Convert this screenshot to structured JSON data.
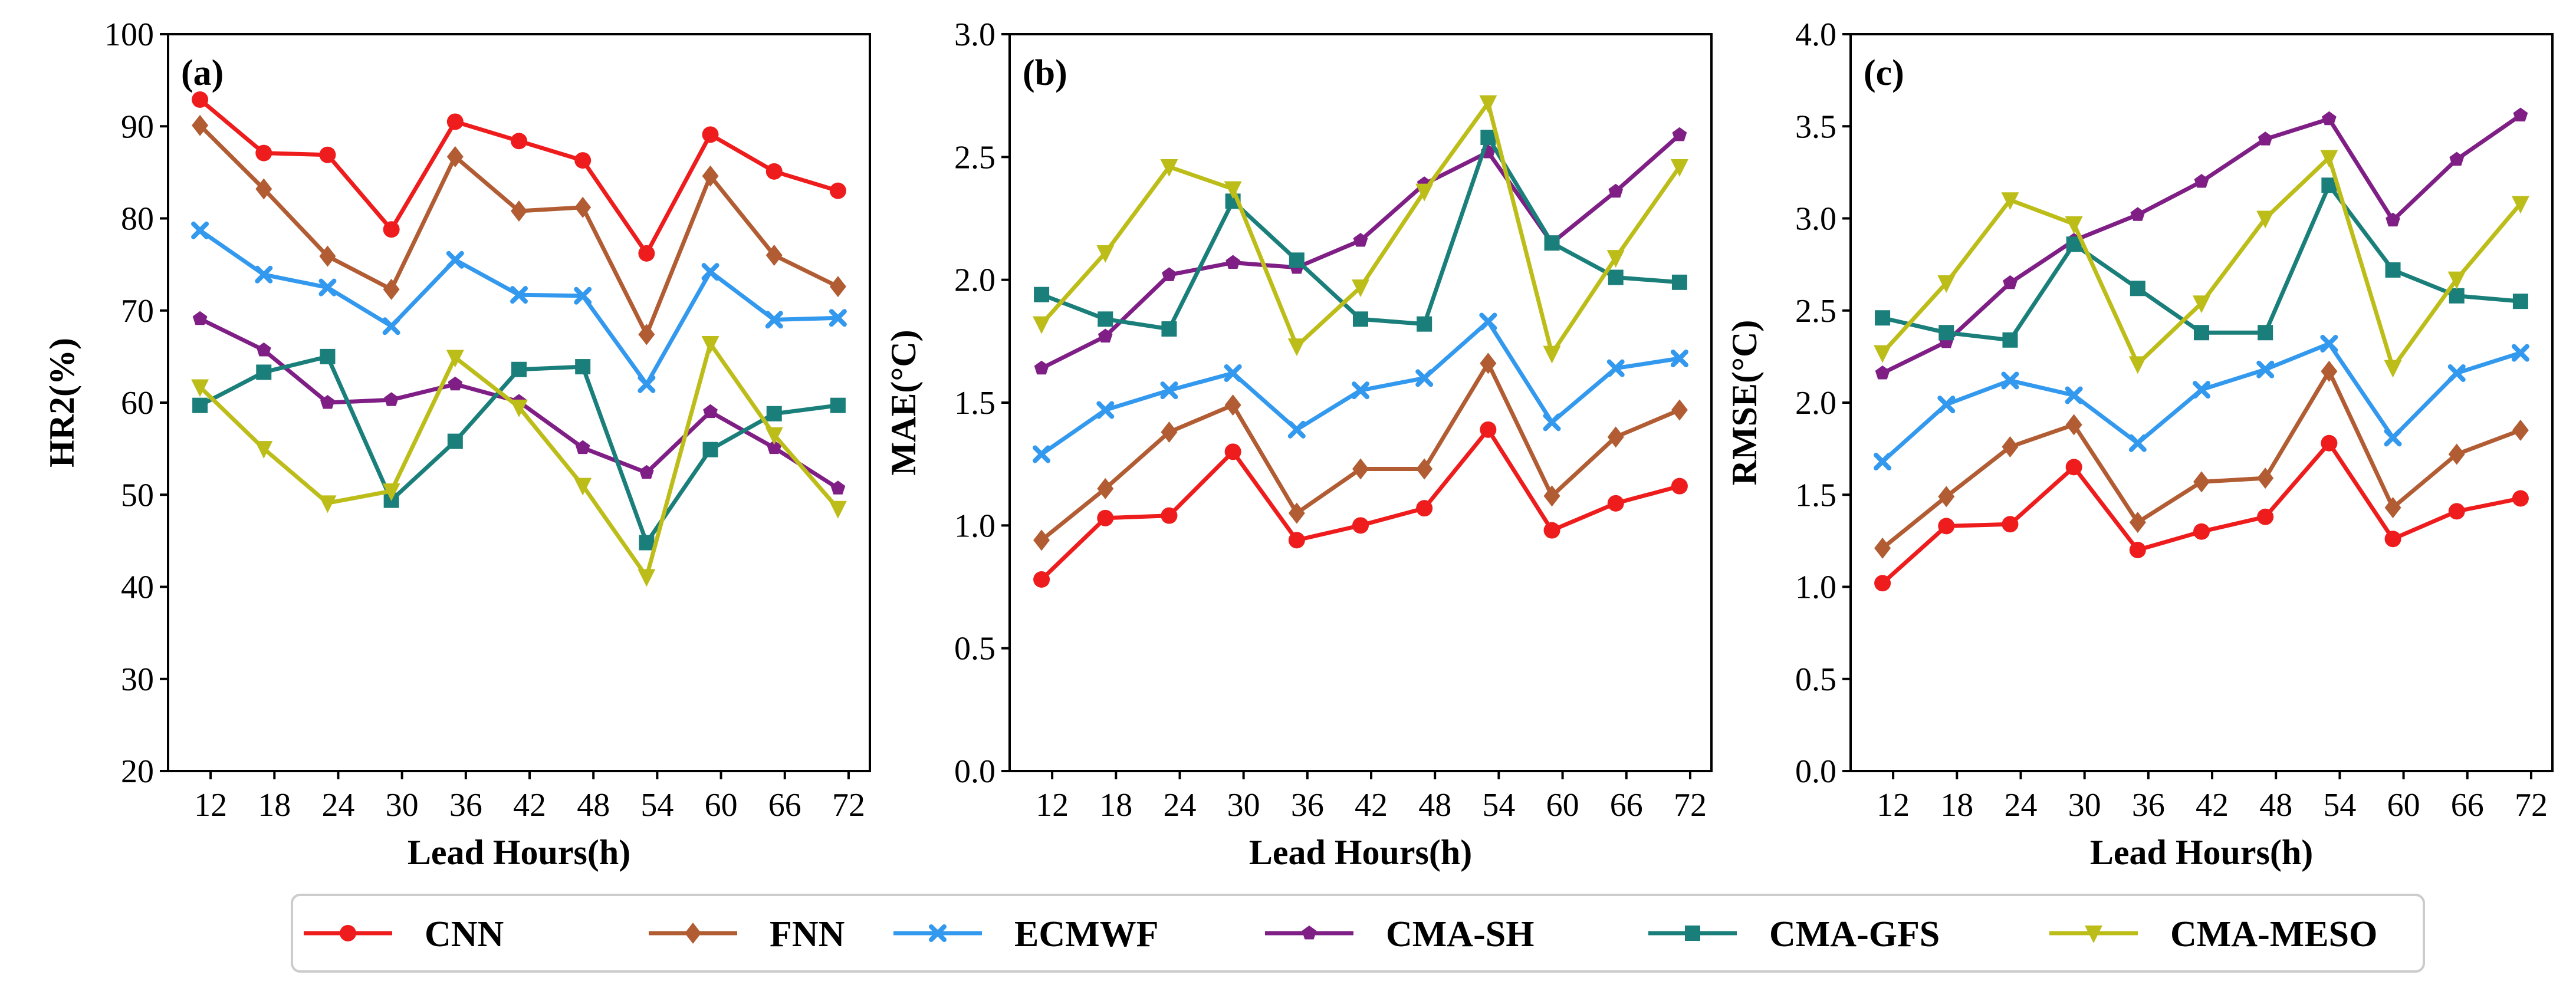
{
  "legend": [
    {
      "name": "CNN",
      "color": "#ee1c1c",
      "marker": "circle"
    },
    {
      "name": "FNN",
      "color": "#b15c33",
      "marker": "diamond"
    },
    {
      "name": "ECMWF",
      "color": "#3399ee",
      "marker": "x"
    },
    {
      "name": "CMA-SH",
      "color": "#7f1f86",
      "marker": "pentagon"
    },
    {
      "name": "CMA-GFS",
      "color": "#1a7f7a",
      "marker": "square"
    },
    {
      "name": "CMA-MESO",
      "color": "#bdbd1a",
      "marker": "triangle-down"
    }
  ],
  "chart_data": [
    {
      "type": "line",
      "panel": "(a)",
      "xlabel": "Lead Hours(h)",
      "ylabel": "HR2(%)",
      "ylim": [
        20,
        100
      ],
      "yticks": [
        "20",
        "30",
        "40",
        "50",
        "60",
        "70",
        "80",
        "90",
        "100"
      ],
      "xticks": [
        "12",
        "18",
        "24",
        "30",
        "36",
        "42",
        "48",
        "54",
        "60",
        "66",
        "72"
      ],
      "x": [
        11,
        17,
        23,
        29,
        35,
        41,
        47,
        53,
        59,
        65,
        71
      ],
      "series": [
        {
          "name": "CNN",
          "values": [
            92.9,
            87.1,
            86.9,
            78.8,
            90.5,
            88.4,
            86.3,
            76.2,
            89.1,
            85.1,
            83.0
          ]
        },
        {
          "name": "FNN",
          "values": [
            90.1,
            83.2,
            75.9,
            72.3,
            86.7,
            80.8,
            81.2,
            67.4,
            84.6,
            76.0,
            72.6
          ]
        },
        {
          "name": "ECMWF",
          "values": [
            78.7,
            73.9,
            72.5,
            68.3,
            75.5,
            71.7,
            71.6,
            62.0,
            74.2,
            69.0,
            69.2
          ]
        },
        {
          "name": "CMA-SH",
          "values": [
            69.1,
            65.7,
            60.0,
            60.3,
            62.0,
            60.1,
            55.1,
            52.4,
            59.0,
            55.1,
            50.7
          ]
        },
        {
          "name": "CMA-GFS",
          "values": [
            59.7,
            63.3,
            65.0,
            49.4,
            55.8,
            63.6,
            63.9,
            44.8,
            54.9,
            58.8,
            59.7
          ]
        },
        {
          "name": "CMA-MESO",
          "values": [
            61.7,
            55.0,
            49.1,
            50.4,
            64.9,
            59.5,
            51.0,
            41.1,
            66.4,
            56.5,
            48.5
          ]
        }
      ]
    },
    {
      "type": "line",
      "panel": "(b)",
      "xlabel": "Lead Hours(h)",
      "ylabel": "MAE(°C)",
      "ylim": [
        0.0,
        3.0
      ],
      "yticks": [
        "0.0",
        "0.5",
        "1.0",
        "1.5",
        "2.0",
        "2.5",
        "3.0"
      ],
      "xticks": [
        "12",
        "18",
        "24",
        "30",
        "36",
        "42",
        "48",
        "54",
        "60",
        "66",
        "72"
      ],
      "x": [
        11,
        17,
        23,
        29,
        35,
        41,
        47,
        53,
        59,
        65,
        71
      ],
      "series": [
        {
          "name": "CNN",
          "values": [
            0.78,
            1.03,
            1.04,
            1.3,
            0.94,
            1.0,
            1.07,
            1.39,
            0.98,
            1.09,
            1.16
          ]
        },
        {
          "name": "FNN",
          "values": [
            0.94,
            1.15,
            1.38,
            1.49,
            1.05,
            1.23,
            1.23,
            1.66,
            1.12,
            1.36,
            1.47
          ]
        },
        {
          "name": "ECMWF",
          "values": [
            1.29,
            1.47,
            1.55,
            1.62,
            1.39,
            1.55,
            1.6,
            1.83,
            1.42,
            1.64,
            1.68
          ]
        },
        {
          "name": "CMA-SH",
          "values": [
            1.64,
            1.77,
            2.02,
            2.07,
            2.05,
            2.16,
            2.39,
            2.52,
            2.15,
            2.36,
            2.59
          ]
        },
        {
          "name": "CMA-GFS",
          "values": [
            1.94,
            1.84,
            1.8,
            2.32,
            2.08,
            1.84,
            1.82,
            2.58,
            2.15,
            2.01,
            1.99
          ]
        },
        {
          "name": "CMA-MESO",
          "values": [
            1.82,
            2.11,
            2.46,
            2.37,
            1.73,
            1.97,
            2.36,
            2.72,
            1.7,
            2.09,
            2.46
          ]
        }
      ]
    },
    {
      "type": "line",
      "panel": "(c)",
      "xlabel": "Lead Hours(h)",
      "ylabel": "RMSE(°C)",
      "ylim": [
        0.0,
        4.0
      ],
      "yticks": [
        "0.0",
        "0.5",
        "1.0",
        "1.5",
        "2.0",
        "2.5",
        "3.0",
        "3.5",
        "4.0"
      ],
      "xticks": [
        "12",
        "18",
        "24",
        "30",
        "36",
        "42",
        "48",
        "54",
        "60",
        "66",
        "72"
      ],
      "x": [
        11,
        17,
        23,
        29,
        35,
        41,
        47,
        53,
        59,
        65,
        71
      ],
      "series": [
        {
          "name": "CNN",
          "values": [
            1.02,
            1.33,
            1.34,
            1.65,
            1.2,
            1.3,
            1.38,
            1.78,
            1.26,
            1.41,
            1.48
          ]
        },
        {
          "name": "FNN",
          "values": [
            1.21,
            1.49,
            1.76,
            1.88,
            1.35,
            1.57,
            1.59,
            2.17,
            1.43,
            1.72,
            1.85
          ]
        },
        {
          "name": "ECMWF",
          "values": [
            1.68,
            1.99,
            2.12,
            2.04,
            1.78,
            2.07,
            2.18,
            2.32,
            1.81,
            2.16,
            2.27
          ]
        },
        {
          "name": "CMA-SH",
          "values": [
            2.16,
            2.33,
            2.65,
            2.88,
            3.02,
            3.2,
            3.43,
            3.54,
            2.99,
            3.32,
            3.56
          ]
        },
        {
          "name": "CMA-GFS",
          "values": [
            2.46,
            2.38,
            2.34,
            2.86,
            2.62,
            2.38,
            2.38,
            3.18,
            2.72,
            2.58,
            2.55
          ]
        },
        {
          "name": "CMA-MESO",
          "values": [
            2.27,
            2.65,
            3.1,
            2.97,
            2.21,
            2.54,
            3.0,
            3.33,
            2.19,
            2.67,
            3.08
          ]
        }
      ]
    }
  ]
}
